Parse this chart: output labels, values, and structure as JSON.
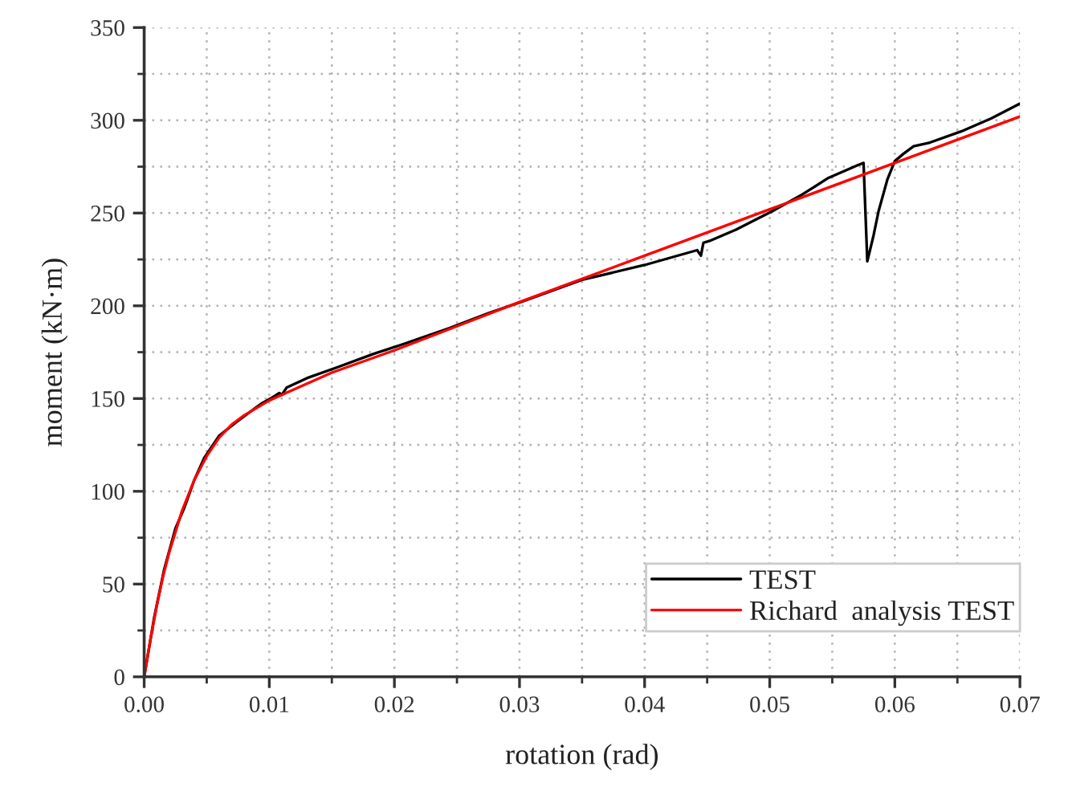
{
  "chart_data": {
    "type": "line",
    "xlabel": "rotation (rad)",
    "ylabel": "moment (kN·m)",
    "xlim": [
      0,
      0.07
    ],
    "ylim": [
      0,
      350
    ],
    "xticks": [
      {
        "value": 0,
        "label": "0.00"
      },
      {
        "value": 0.005,
        "label": null
      },
      {
        "value": 0.01,
        "label": "0.01"
      },
      {
        "value": 0.015,
        "label": null
      },
      {
        "value": 0.02,
        "label": "0.02"
      },
      {
        "value": 0.025,
        "label": null
      },
      {
        "value": 0.03,
        "label": "0.03"
      },
      {
        "value": 0.035,
        "label": null
      },
      {
        "value": 0.04,
        "label": "0.04"
      },
      {
        "value": 0.045,
        "label": null
      },
      {
        "value": 0.05,
        "label": "0.05"
      },
      {
        "value": 0.055,
        "label": null
      },
      {
        "value": 0.06,
        "label": "0.06"
      },
      {
        "value": 0.065,
        "label": null
      },
      {
        "value": 0.07,
        "label": "0.07"
      }
    ],
    "yticks": [
      0,
      {
        "value": 25,
        "label": null
      },
      50,
      {
        "value": 75,
        "label": null
      },
      100,
      {
        "value": 125,
        "label": null
      },
      150,
      {
        "value": 175,
        "label": null
      },
      200,
      {
        "value": 225,
        "label": null
      },
      250,
      {
        "value": 275,
        "label": null
      },
      300,
      {
        "value": 325,
        "label": null
      },
      350
    ],
    "grid": true,
    "legend": "bottom right",
    "series": [
      {
        "name": "TEST",
        "color": "#000000",
        "x": [
          0,
          0.0008,
          0.0016,
          0.0025,
          0.0032,
          0.004,
          0.0048,
          0.006,
          0.0073,
          0.0085,
          0.0093,
          0.0101,
          0.0108,
          0.011,
          0.0114,
          0.013,
          0.0155,
          0.0183,
          0.021,
          0.0244,
          0.0275,
          0.0301,
          0.035,
          0.04,
          0.0442,
          0.0445,
          0.0447,
          0.0452,
          0.0473,
          0.0502,
          0.0526,
          0.0547,
          0.0571,
          0.0575,
          0.0578,
          0.0583,
          0.0587,
          0.0594,
          0.06,
          0.0607,
          0.0615,
          0.0628,
          0.0653,
          0.0677,
          0.07
        ],
        "values": [
          0,
          32,
          58,
          80,
          91,
          106,
          118,
          130,
          137,
          143,
          147,
          150,
          153,
          152,
          156,
          161,
          167,
          174,
          180,
          188,
          196,
          202,
          214,
          222,
          230,
          227,
          234,
          235,
          241,
          251,
          260,
          269,
          276,
          277,
          224,
          238,
          251,
          268,
          278,
          282,
          286,
          288,
          294,
          301,
          309
        ]
      },
      {
        "name": "Richard  analysis TEST",
        "color": "#ff0000",
        "x": [
          0,
          0.0005,
          0.001,
          0.0015,
          0.002,
          0.003,
          0.004,
          0.005,
          0.006,
          0.007,
          0.008,
          0.01,
          0.012,
          0.015,
          0.02,
          0.025,
          0.03,
          0.04,
          0.05,
          0.06,
          0.07
        ],
        "values": [
          0,
          20,
          38,
          54,
          67,
          89,
          106,
          119,
          129,
          136,
          141,
          149,
          155,
          164,
          176,
          189,
          202,
          227,
          252,
          277,
          302
        ]
      }
    ]
  }
}
